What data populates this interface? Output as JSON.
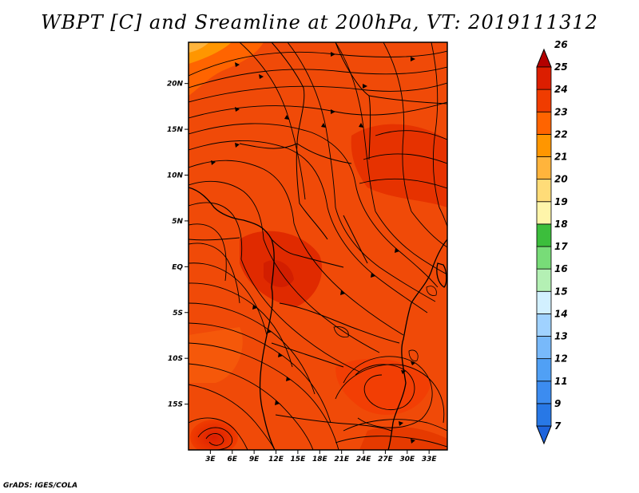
{
  "title": "WBPT [C] and Sreamline at 200hPa, VT: 2019111312",
  "credit": "GrADS: IGES/COLA",
  "map": {
    "lon_range": [
      0,
      35.5
    ],
    "lat_range": [
      -20,
      24.5
    ],
    "lat_ticks": [
      {
        "value": 20,
        "label": "20N"
      },
      {
        "value": 15,
        "label": "15N"
      },
      {
        "value": 10,
        "label": "10N"
      },
      {
        "value": 5,
        "label": "5N"
      },
      {
        "value": 0,
        "label": "EQ"
      },
      {
        "value": -5,
        "label": "5S"
      },
      {
        "value": -10,
        "label": "10S"
      },
      {
        "value": -15,
        "label": "15S"
      }
    ],
    "lon_ticks": [
      {
        "value": 3,
        "label": "3E"
      },
      {
        "value": 6,
        "label": "6E"
      },
      {
        "value": 9,
        "label": "9E"
      },
      {
        "value": 12,
        "label": "12E"
      },
      {
        "value": 15,
        "label": "15E"
      },
      {
        "value": 18,
        "label": "18E"
      },
      {
        "value": 21,
        "label": "21E"
      },
      {
        "value": 24,
        "label": "24E"
      },
      {
        "value": 27,
        "label": "27E"
      },
      {
        "value": 30,
        "label": "30E"
      },
      {
        "value": 33,
        "label": "33E"
      }
    ],
    "colorbar": [
      {
        "label": "7",
        "color": "#1e64dc"
      },
      {
        "label": "9",
        "color": "#2878e6"
      },
      {
        "label": "11",
        "color": "#3c8cf0"
      },
      {
        "label": "12",
        "color": "#50a0f5"
      },
      {
        "label": "13",
        "color": "#78b9fa"
      },
      {
        "label": "14",
        "color": "#a0d2ff"
      },
      {
        "label": "15",
        "color": "#d2f0ff"
      },
      {
        "label": "16",
        "color": "#b4f0b4"
      },
      {
        "label": "17",
        "color": "#78dc78"
      },
      {
        "label": "18",
        "color": "#3cbe3c"
      },
      {
        "label": "19",
        "color": "#fff5aa"
      },
      {
        "label": "20",
        "color": "#ffdc78"
      },
      {
        "label": "21",
        "color": "#ffb43c"
      },
      {
        "label": "22",
        "color": "#ff9600"
      },
      {
        "label": "23",
        "color": "#ff6400"
      },
      {
        "label": "24",
        "color": "#f03c00"
      },
      {
        "label": "25",
        "color": "#dc1e00"
      },
      {
        "label": "26",
        "color": "#b40000"
      }
    ]
  }
}
